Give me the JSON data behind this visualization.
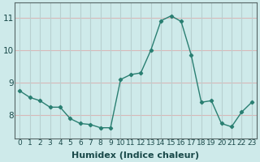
{
  "x": [
    0,
    1,
    2,
    3,
    4,
    5,
    6,
    7,
    8,
    9,
    10,
    11,
    12,
    13,
    14,
    15,
    16,
    17,
    18,
    19,
    20,
    21,
    22,
    23
  ],
  "y": [
    8.75,
    8.55,
    8.45,
    8.25,
    8.25,
    7.9,
    7.75,
    7.72,
    7.62,
    7.62,
    9.1,
    9.25,
    9.3,
    10.0,
    10.9,
    11.05,
    10.88,
    9.85,
    8.4,
    8.45,
    7.75,
    7.65,
    8.1,
    8.4
  ],
  "line_color": "#2a7f72",
  "marker": "D",
  "markersize": 2.2,
  "linewidth": 1.0,
  "xlabel": "Humidex (Indice chaleur)",
  "xlim": [
    -0.5,
    23.5
  ],
  "ylim": [
    7.3,
    11.45
  ],
  "yticks": [
    8,
    9,
    10,
    11
  ],
  "ytick_labels": [
    "8",
    "9",
    "10",
    "11"
  ],
  "xtick_labels": [
    "0",
    "1",
    "2",
    "3",
    "4",
    "5",
    "6",
    "7",
    "8",
    "9",
    "10",
    "11",
    "12",
    "13",
    "14",
    "15",
    "16",
    "17",
    "18",
    "19",
    "20",
    "21",
    "22",
    "23"
  ],
  "bg_color": "#ceeaea",
  "grid_color_h": "#d8b8b8",
  "grid_color_v": "#b8d0d0",
  "xlabel_fontsize": 8,
  "ytick_fontsize": 7.5,
  "xtick_fontsize": 6.5,
  "spine_color": "#556666"
}
